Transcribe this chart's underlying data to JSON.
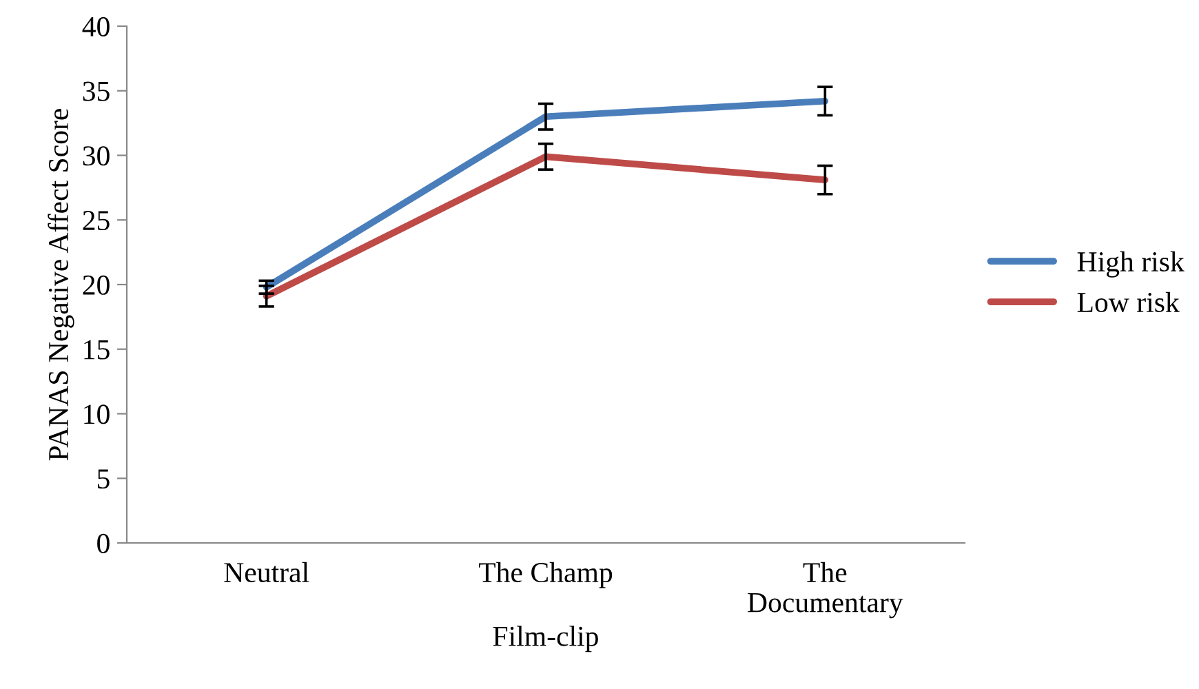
{
  "chart_data": {
    "type": "line",
    "xlabel": "Film-clip",
    "ylabel": "PANAS Negative Affect Score",
    "categories": [
      "Neutral",
      "The Champ",
      "The\nDocumentary"
    ],
    "series": [
      {
        "name": "High risk",
        "color": "#4a7ebb",
        "values": [
          19.8,
          33.0,
          34.2
        ],
        "errors": [
          0.5,
          1.0,
          1.1
        ]
      },
      {
        "name": "Low risk",
        "color": "#be4b48",
        "values": [
          19.1,
          29.9,
          28.1
        ],
        "errors": [
          0.8,
          1.0,
          1.1
        ]
      }
    ],
    "ylim": [
      0,
      40
    ],
    "yticks": [
      0,
      5,
      10,
      15,
      20,
      25,
      30,
      35,
      40
    ],
    "grid": false,
    "legend": "right",
    "marker": "none",
    "line_style": "solid"
  }
}
